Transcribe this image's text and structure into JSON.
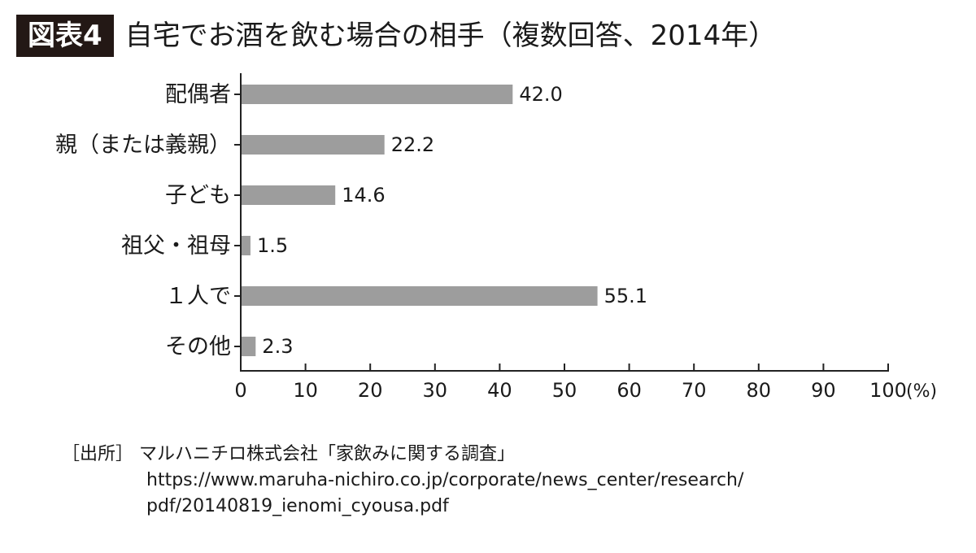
{
  "header": {
    "figure_label": "図表4",
    "title": "自宅でお酒を飲む場合の相手（複数回答、2014年）"
  },
  "chart_data": {
    "type": "bar",
    "orientation": "horizontal",
    "categories": [
      "配偶者",
      "親（または義親）",
      "子ども",
      "祖父・祖母",
      "１人で",
      "その他"
    ],
    "values": [
      42.0,
      22.2,
      14.6,
      1.5,
      55.1,
      2.3
    ],
    "value_labels": [
      "42.0",
      "22.2",
      "14.6",
      "1.5",
      "55.1",
      "2.3"
    ],
    "xlim": [
      0,
      100
    ],
    "x_ticks": [
      "0",
      "10",
      "20",
      "30",
      "40",
      "50",
      "60",
      "70",
      "80",
      "90",
      "100"
    ],
    "x_unit": "(%)",
    "bar_color": "#9d9d9d",
    "grid": false
  },
  "source": {
    "label": "［出所］",
    "text": "マルハニチロ株式会社「家飲みに関する調査」",
    "url_line1": "https://www.maruha-nichiro.co.jp/corporate/news_center/research/",
    "url_line2": "pdf/20140819_ienomi_cyousa.pdf"
  }
}
